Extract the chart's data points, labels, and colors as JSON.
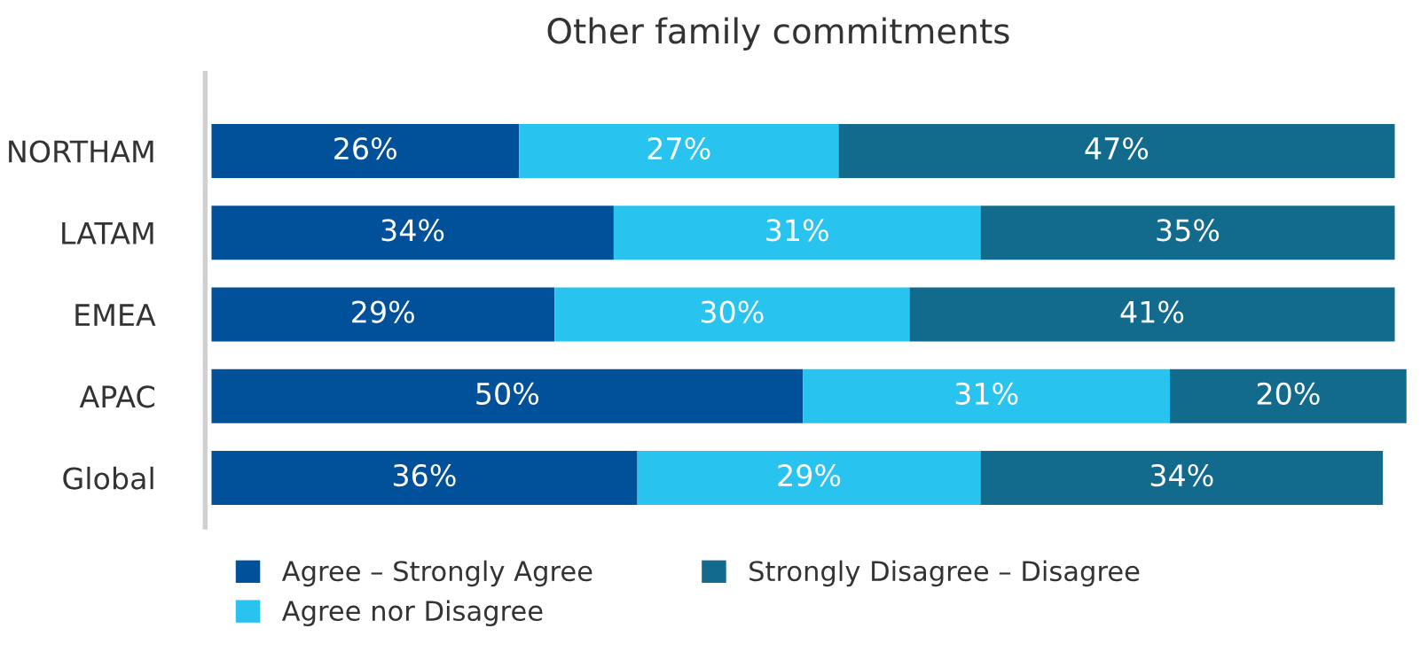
{
  "chart_data": {
    "type": "bar",
    "orientation": "horizontal",
    "stacked": true,
    "title": "Other family commitments",
    "categories": [
      "NORTHAM",
      "LATAM",
      "EMEA",
      "APAC",
      "Global"
    ],
    "series": [
      {
        "name": "Agree – Strongly Agree",
        "color": "#00509a",
        "values": [
          26,
          34,
          29,
          50,
          36
        ],
        "value_labels": [
          "26%",
          "34%",
          "29%",
          "50%",
          "36%"
        ]
      },
      {
        "name": "Agree nor Disagree",
        "color": "#29c3f0",
        "values": [
          27,
          31,
          30,
          31,
          29
        ],
        "value_labels": [
          "27%",
          "31%",
          "30%",
          "31%",
          "29%"
        ]
      },
      {
        "name": "Strongly Disagree – Disagree",
        "color": "#126b8c",
        "values": [
          47,
          35,
          41,
          20,
          34
        ],
        "value_labels": [
          "47%",
          "35%",
          "41%",
          "20%",
          "34%"
        ]
      }
    ],
    "legend": "bottom",
    "grid": false,
    "tick_labels": "y"
  }
}
